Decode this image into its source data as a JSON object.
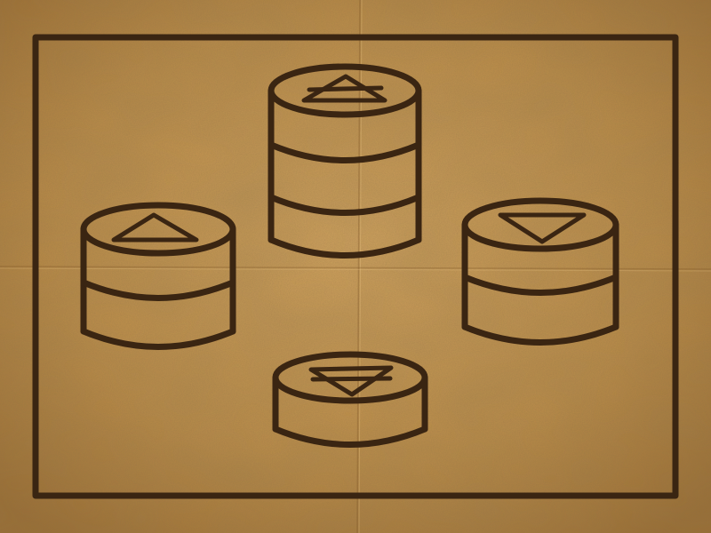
{
  "colors": {
    "paper_light": "#d4a55f",
    "paper": "#bd8d48",
    "paper_dark": "#9a6c31",
    "ink": "#3a2512"
  },
  "board": {
    "pieces": [
      {
        "name": "piece-stack-top",
        "layers": 3,
        "marker": "triangle-up"
      },
      {
        "name": "piece-stack-left",
        "layers": 2,
        "marker": "triangle-up"
      },
      {
        "name": "piece-stack-right",
        "layers": 2,
        "marker": "triangle-down"
      },
      {
        "name": "piece-stack-bottom",
        "layers": 1,
        "marker": "triangle-down"
      }
    ]
  }
}
